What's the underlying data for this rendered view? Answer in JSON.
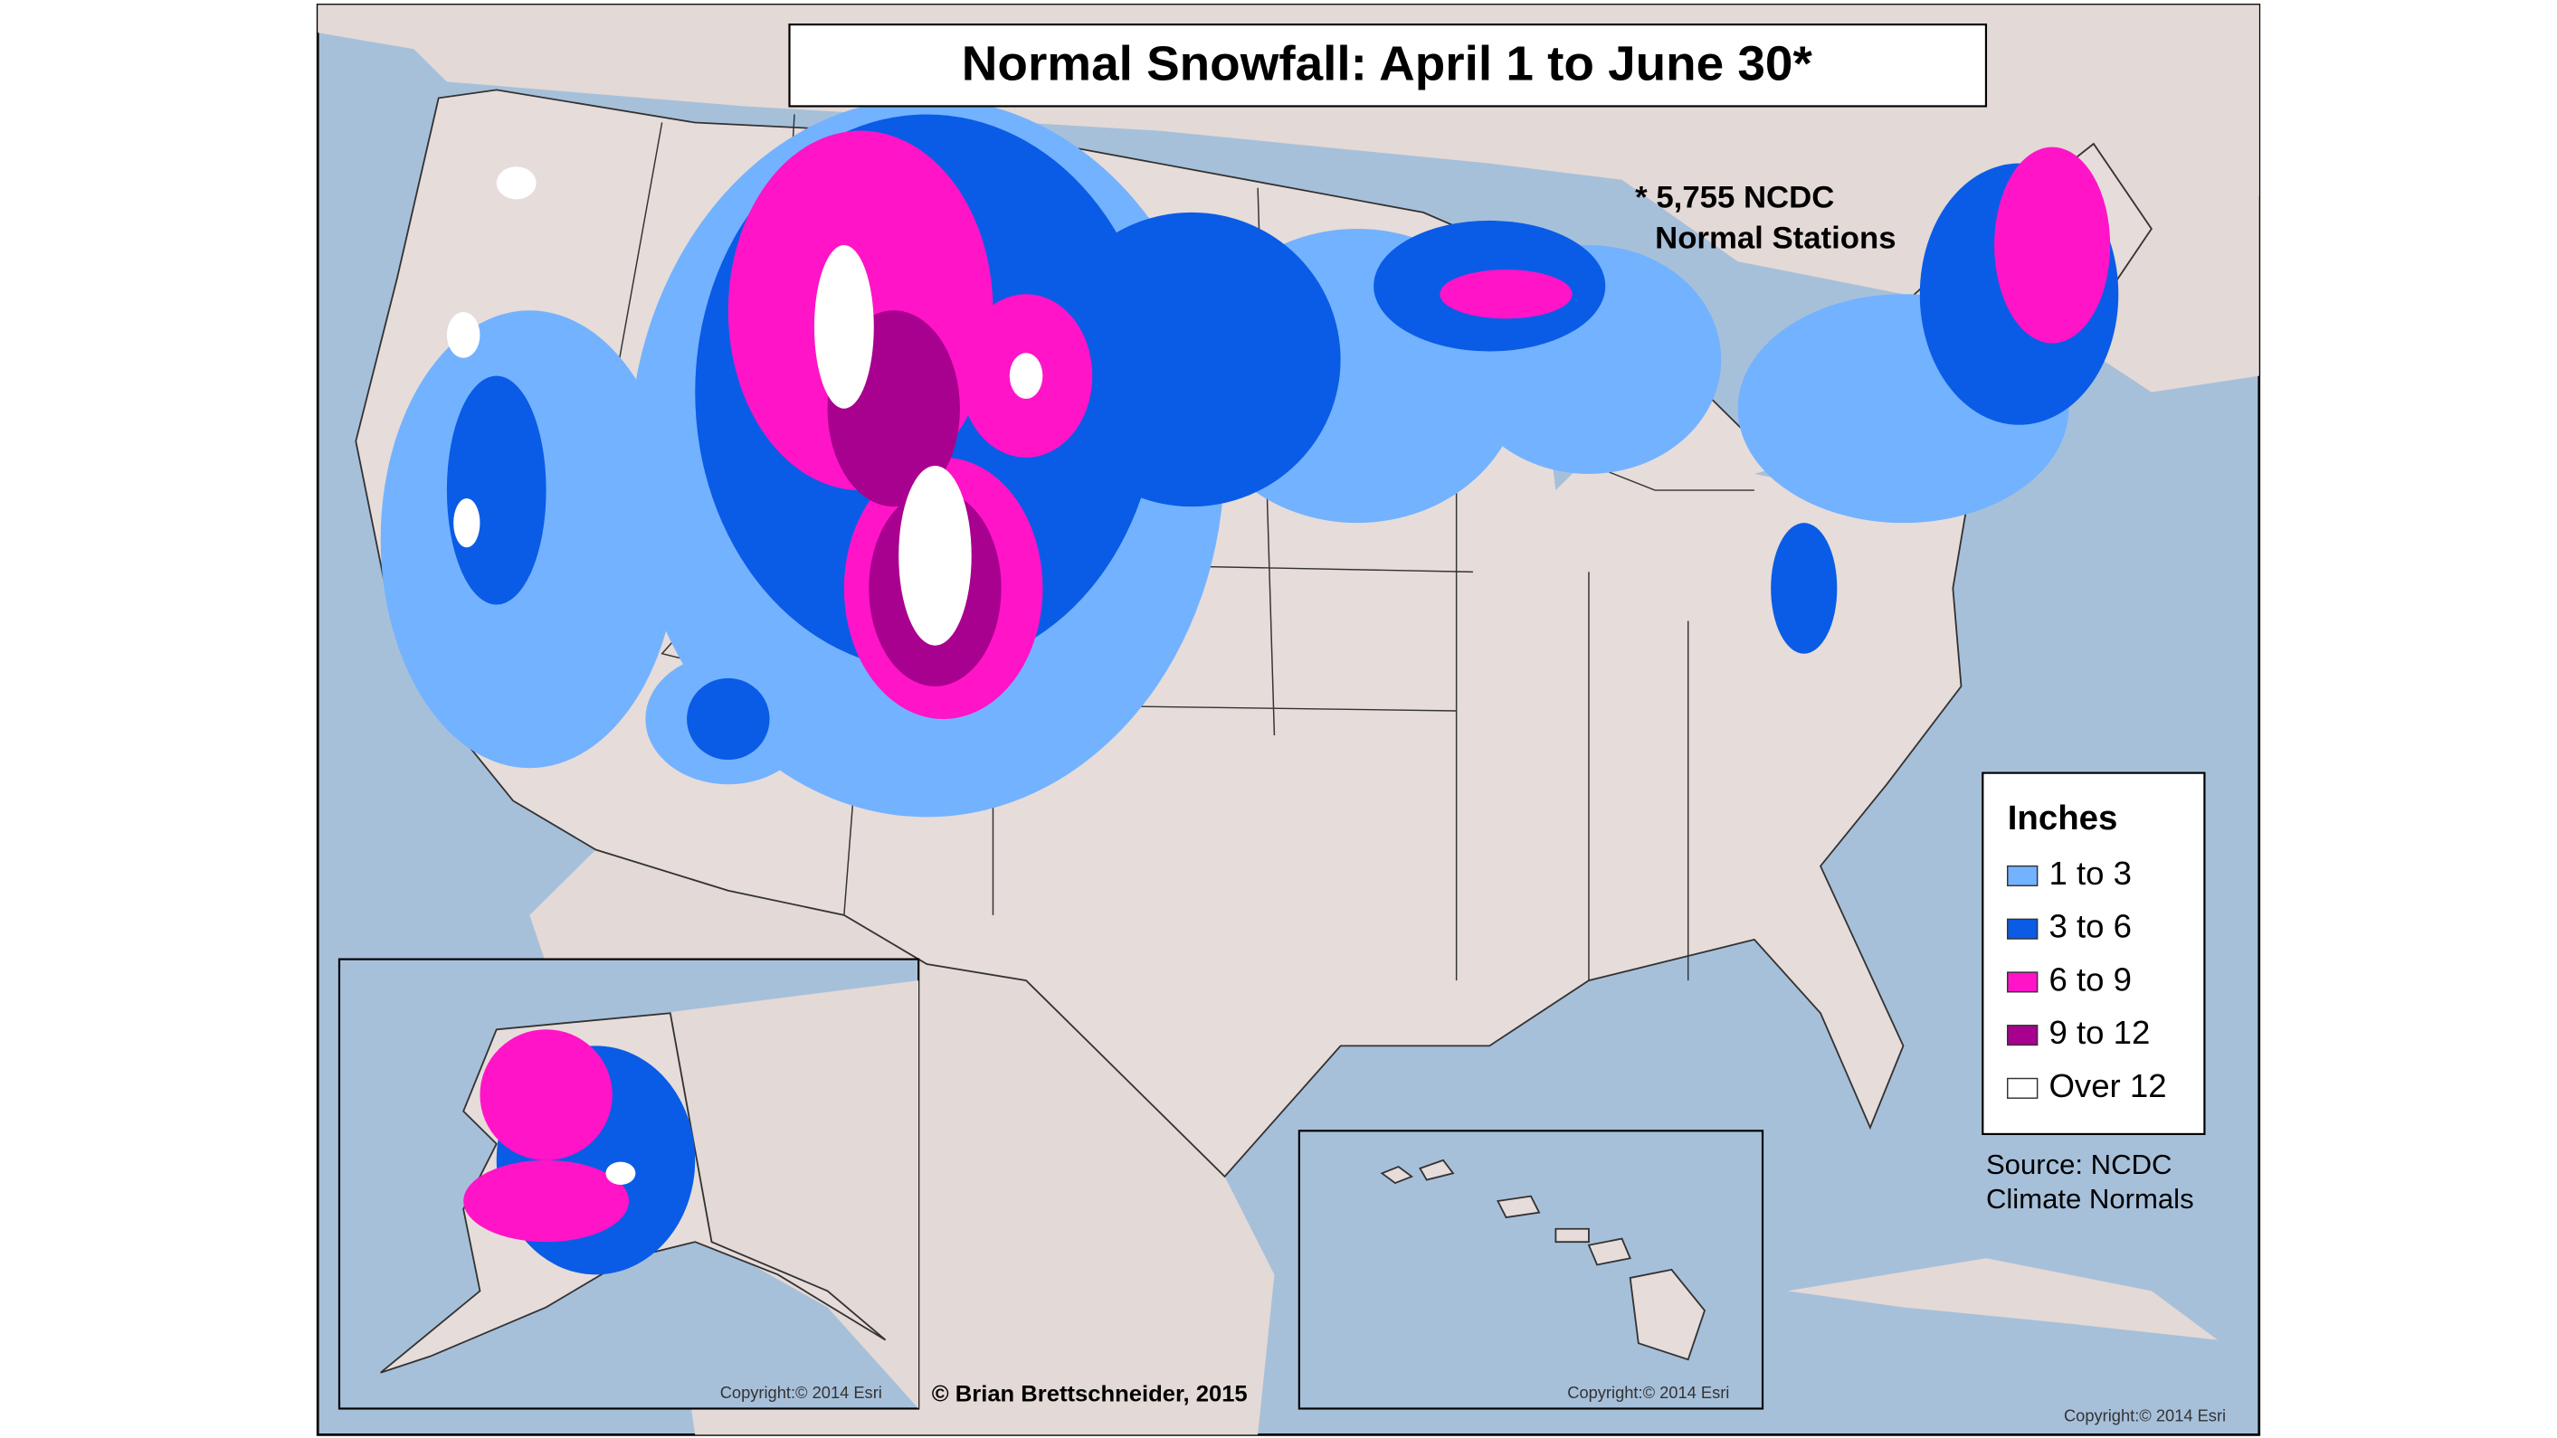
{
  "title": "Normal Snowfall: April 1 to June 30*",
  "note": [
    "* 5,755 NCDC",
    "Normal Stations"
  ],
  "legend": {
    "title": "Inches",
    "items": [
      {
        "label": "1 to 3",
        "color": "#73b2ff"
      },
      {
        "label": "3 to 6",
        "color": "#0a5ce6"
      },
      {
        "label": "6 to 9",
        "color": "#ff14c8"
      },
      {
        "label": "9 to 12",
        "color": "#a8008f"
      },
      {
        "label": "Over 12",
        "color": "#ffffff"
      }
    ]
  },
  "source": [
    "Source: NCDC",
    "Climate Normals"
  ],
  "credit": "© Brian Brettschneider, 2015",
  "copyrights": [
    "Copyright:© 2014 Esri",
    "Copyright:© 2014 Esri",
    "Copyright:© 2014 Esri"
  ]
}
